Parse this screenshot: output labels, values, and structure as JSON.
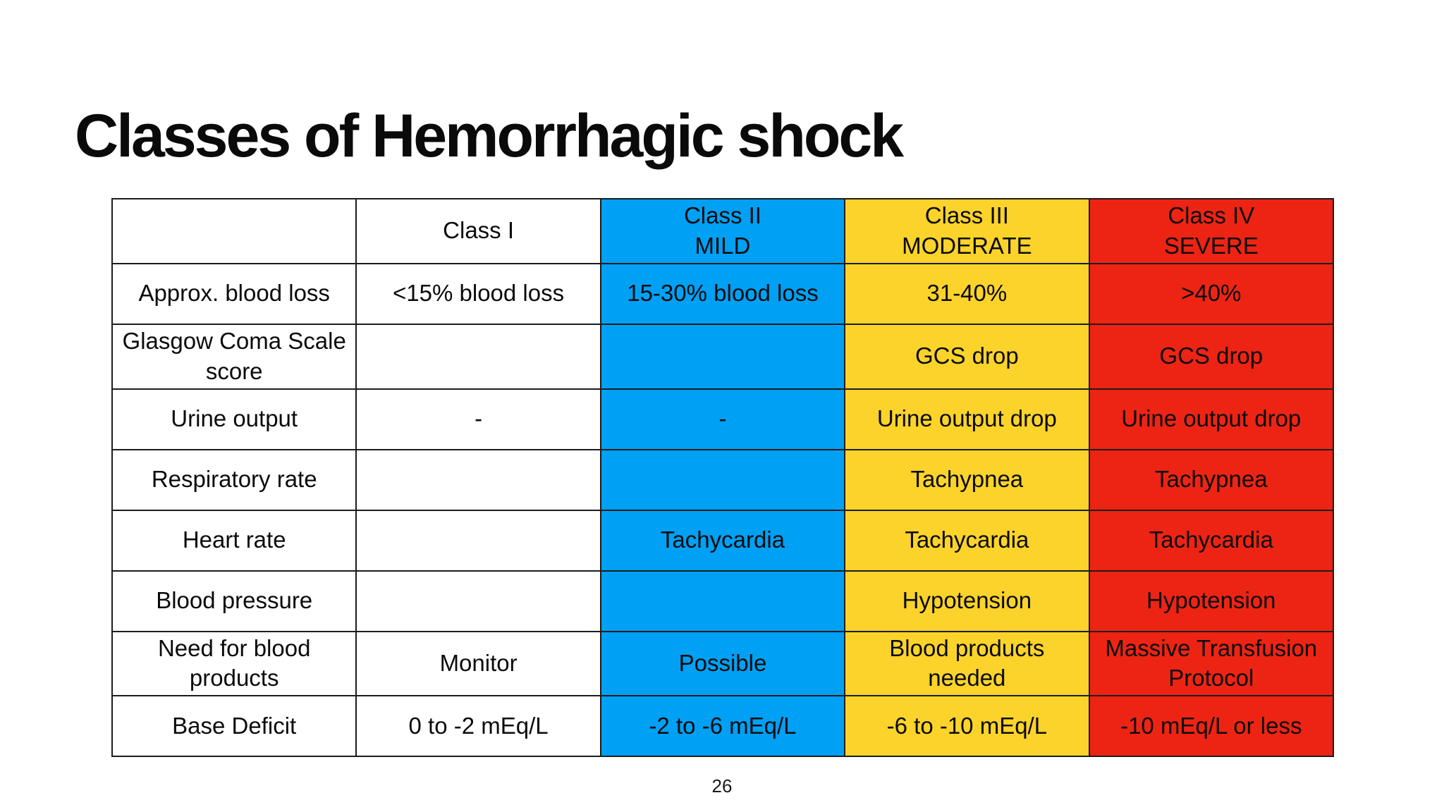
{
  "slide": {
    "title": "Classes of Hemorrhagic shock",
    "page_number": "26"
  },
  "colors": {
    "blue": "#00A0F4",
    "yellow": "#FBD32B",
    "red": "#ED2414",
    "border": "#1c1c1c"
  },
  "table": {
    "columns": [
      {
        "header_line1": "",
        "header_line2": ""
      },
      {
        "header_line1": "Class I",
        "header_line2": ""
      },
      {
        "header_line1": "Class II",
        "header_line2": "MILD"
      },
      {
        "header_line1": "Class III",
        "header_line2": "MODERATE"
      },
      {
        "header_line1": "Class IV",
        "header_line2": "SEVERE"
      }
    ],
    "rows": [
      {
        "label": "Approx. blood loss",
        "class1": "<15% blood loss",
        "class2": "15-30% blood loss",
        "class3": "31-40%",
        "class4": ">40%"
      },
      {
        "label": "Glasgow Coma Scale score",
        "class1": "",
        "class2": "",
        "class3": "GCS drop",
        "class4": "GCS drop"
      },
      {
        "label": "Urine output",
        "class1": "-",
        "class2": "-",
        "class3": "Urine output drop",
        "class4": "Urine output drop"
      },
      {
        "label": "Respiratory rate",
        "class1": "",
        "class2": "",
        "class3": "Tachypnea",
        "class4": "Tachypnea"
      },
      {
        "label": "Heart rate",
        "class1": "",
        "class2": "Tachycardia",
        "class3": "Tachycardia",
        "class4": "Tachycardia"
      },
      {
        "label": "Blood pressure",
        "class1": "",
        "class2": "",
        "class3": "Hypotension",
        "class4": "Hypotension"
      },
      {
        "label": "Need for blood products",
        "class1": "Monitor",
        "class2": "Possible",
        "class3": "Blood products needed",
        "class4": "Massive Transfusion Protocol"
      },
      {
        "label": "Base Deficit",
        "class1": "0 to -2 mEq/L",
        "class2": "-2 to -6 mEq/L",
        "class3": "-6 to -10 mEq/L",
        "class4": "-10 mEq/L or less"
      }
    ]
  }
}
